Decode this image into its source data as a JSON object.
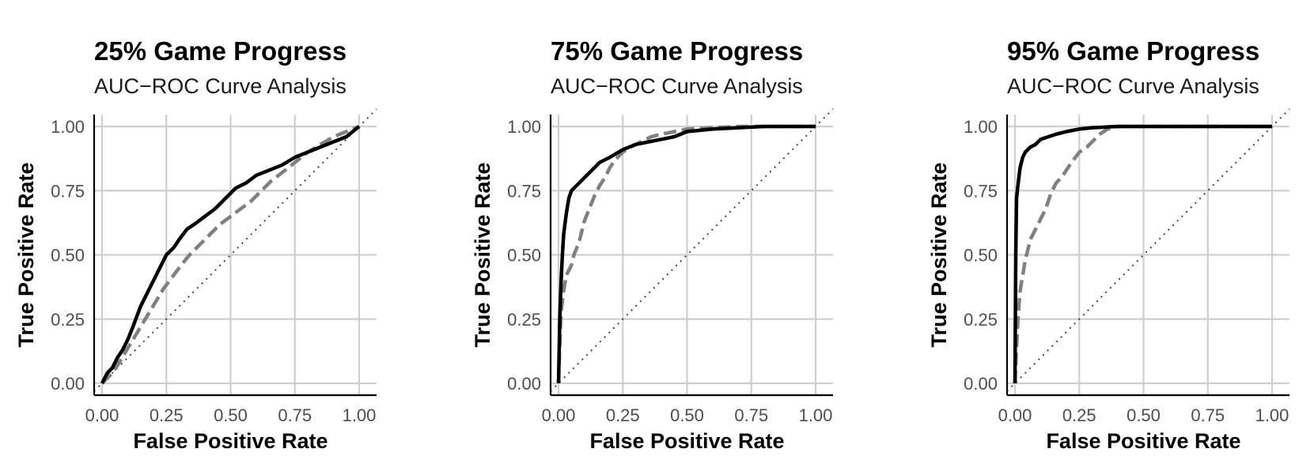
{
  "chart_data": [
    {
      "type": "line",
      "title": "25% Game Progress",
      "subtitle": "AUC−ROC Curve Analysis",
      "xlabel": "False Positive Rate",
      "ylabel": "True Positive Rate",
      "xlim": [
        0,
        1
      ],
      "ylim": [
        0,
        1
      ],
      "xticks": [
        "0.00",
        "0.25",
        "0.50",
        "0.75",
        "1.00"
      ],
      "yticks": [
        "0.00",
        "0.25",
        "0.50",
        "0.75",
        "1.00"
      ],
      "grid": true,
      "reference_line": "diagonal",
      "series": [
        {
          "style": "solid",
          "color": "#000000",
          "x": [
            0,
            0.02,
            0.04,
            0.06,
            0.08,
            0.1,
            0.12,
            0.15,
            0.18,
            0.2,
            0.22,
            0.25,
            0.28,
            0.3,
            0.33,
            0.36,
            0.4,
            0.44,
            0.48,
            0.52,
            0.56,
            0.6,
            0.65,
            0.7,
            0.75,
            0.8,
            0.85,
            0.9,
            0.95,
            1.0
          ],
          "y": [
            0,
            0.04,
            0.06,
            0.1,
            0.13,
            0.17,
            0.22,
            0.3,
            0.36,
            0.4,
            0.44,
            0.5,
            0.53,
            0.56,
            0.6,
            0.62,
            0.65,
            0.68,
            0.72,
            0.76,
            0.78,
            0.81,
            0.83,
            0.85,
            0.88,
            0.9,
            0.92,
            0.94,
            0.96,
            1.0
          ]
        },
        {
          "style": "dashed",
          "color": "#808080",
          "x": [
            0,
            0.03,
            0.06,
            0.09,
            0.12,
            0.15,
            0.18,
            0.21,
            0.24,
            0.27,
            0.3,
            0.34,
            0.38,
            0.42,
            0.46,
            0.5,
            0.54,
            0.58,
            0.62,
            0.66,
            0.7,
            0.75,
            0.8,
            0.85,
            0.9,
            0.95,
            1.0
          ],
          "y": [
            0,
            0.03,
            0.07,
            0.12,
            0.17,
            0.22,
            0.27,
            0.32,
            0.37,
            0.41,
            0.45,
            0.5,
            0.54,
            0.58,
            0.62,
            0.65,
            0.68,
            0.71,
            0.75,
            0.79,
            0.82,
            0.86,
            0.9,
            0.93,
            0.96,
            0.98,
            1.0
          ]
        }
      ]
    },
    {
      "type": "line",
      "title": "75% Game Progress",
      "subtitle": "AUC−ROC Curve Analysis",
      "xlabel": "False Positive Rate",
      "ylabel": "True Positive Rate",
      "xlim": [
        0,
        1
      ],
      "ylim": [
        0,
        1
      ],
      "xticks": [
        "0.00",
        "0.25",
        "0.50",
        "0.75",
        "1.00"
      ],
      "yticks": [
        "0.00",
        "0.25",
        "0.50",
        "0.75",
        "1.00"
      ],
      "grid": true,
      "reference_line": "diagonal",
      "series": [
        {
          "style": "solid",
          "color": "#000000",
          "x": [
            0,
            0.005,
            0.01,
            0.015,
            0.02,
            0.03,
            0.04,
            0.05,
            0.07,
            0.1,
            0.13,
            0.16,
            0.2,
            0.25,
            0.3,
            0.35,
            0.4,
            0.45,
            0.5,
            0.6,
            0.7,
            0.8,
            0.9,
            1.0
          ],
          "y": [
            0,
            0.25,
            0.4,
            0.5,
            0.58,
            0.66,
            0.72,
            0.75,
            0.77,
            0.8,
            0.83,
            0.86,
            0.88,
            0.91,
            0.93,
            0.94,
            0.95,
            0.96,
            0.98,
            0.99,
            0.995,
            1.0,
            1.0,
            1.0
          ]
        },
        {
          "style": "dashed",
          "color": "#808080",
          "x": [
            0,
            0.005,
            0.01,
            0.02,
            0.03,
            0.05,
            0.06,
            0.08,
            0.1,
            0.12,
            0.14,
            0.16,
            0.18,
            0.2,
            0.22,
            0.25,
            0.28,
            0.32,
            0.36,
            0.4,
            0.45,
            0.5,
            0.6,
            0.7,
            0.8,
            0.9,
            1.0
          ],
          "y": [
            0,
            0.15,
            0.28,
            0.36,
            0.42,
            0.46,
            0.5,
            0.55,
            0.63,
            0.68,
            0.73,
            0.77,
            0.8,
            0.84,
            0.87,
            0.9,
            0.92,
            0.94,
            0.96,
            0.97,
            0.98,
            0.99,
            0.995,
            1.0,
            1.0,
            1.0,
            1.0
          ]
        }
      ]
    },
    {
      "type": "line",
      "title": "95% Game Progress",
      "subtitle": "AUC−ROC Curve Analysis",
      "xlabel": "False Positive Rate",
      "ylabel": "True Positive Rate",
      "xlim": [
        0,
        1
      ],
      "ylim": [
        0,
        1
      ],
      "xticks": [
        "0.00",
        "0.25",
        "0.50",
        "0.75",
        "1.00"
      ],
      "yticks": [
        "0.00",
        "0.25",
        "0.50",
        "0.75",
        "1.00"
      ],
      "grid": true,
      "reference_line": "diagonal",
      "series": [
        {
          "style": "solid",
          "color": "#000000",
          "x": [
            0,
            0.003,
            0.006,
            0.01,
            0.015,
            0.02,
            0.03,
            0.04,
            0.06,
            0.08,
            0.1,
            0.13,
            0.16,
            0.2,
            0.25,
            0.3,
            0.4,
            0.5,
            0.6,
            0.7,
            0.8,
            0.9,
            1.0
          ],
          "y": [
            0,
            0.5,
            0.72,
            0.76,
            0.8,
            0.84,
            0.88,
            0.9,
            0.92,
            0.93,
            0.95,
            0.96,
            0.97,
            0.98,
            0.99,
            0.995,
            1.0,
            1.0,
            1.0,
            1.0,
            1.0,
            1.0,
            1.0
          ]
        },
        {
          "style": "dashed",
          "color": "#808080",
          "x": [
            0,
            0.005,
            0.01,
            0.015,
            0.02,
            0.03,
            0.04,
            0.05,
            0.06,
            0.08,
            0.1,
            0.12,
            0.14,
            0.16,
            0.18,
            0.2,
            0.22,
            0.25,
            0.28,
            0.3,
            0.33,
            0.36,
            0.4,
            0.5,
            0.6,
            0.7,
            0.8,
            0.9,
            1.0
          ],
          "y": [
            0,
            0.12,
            0.22,
            0.3,
            0.36,
            0.42,
            0.48,
            0.52,
            0.56,
            0.6,
            0.64,
            0.68,
            0.74,
            0.78,
            0.8,
            0.83,
            0.86,
            0.9,
            0.92,
            0.94,
            0.97,
            0.99,
            1.0,
            1.0,
            1.0,
            1.0,
            1.0,
            1.0,
            1.0
          ]
        }
      ]
    }
  ]
}
